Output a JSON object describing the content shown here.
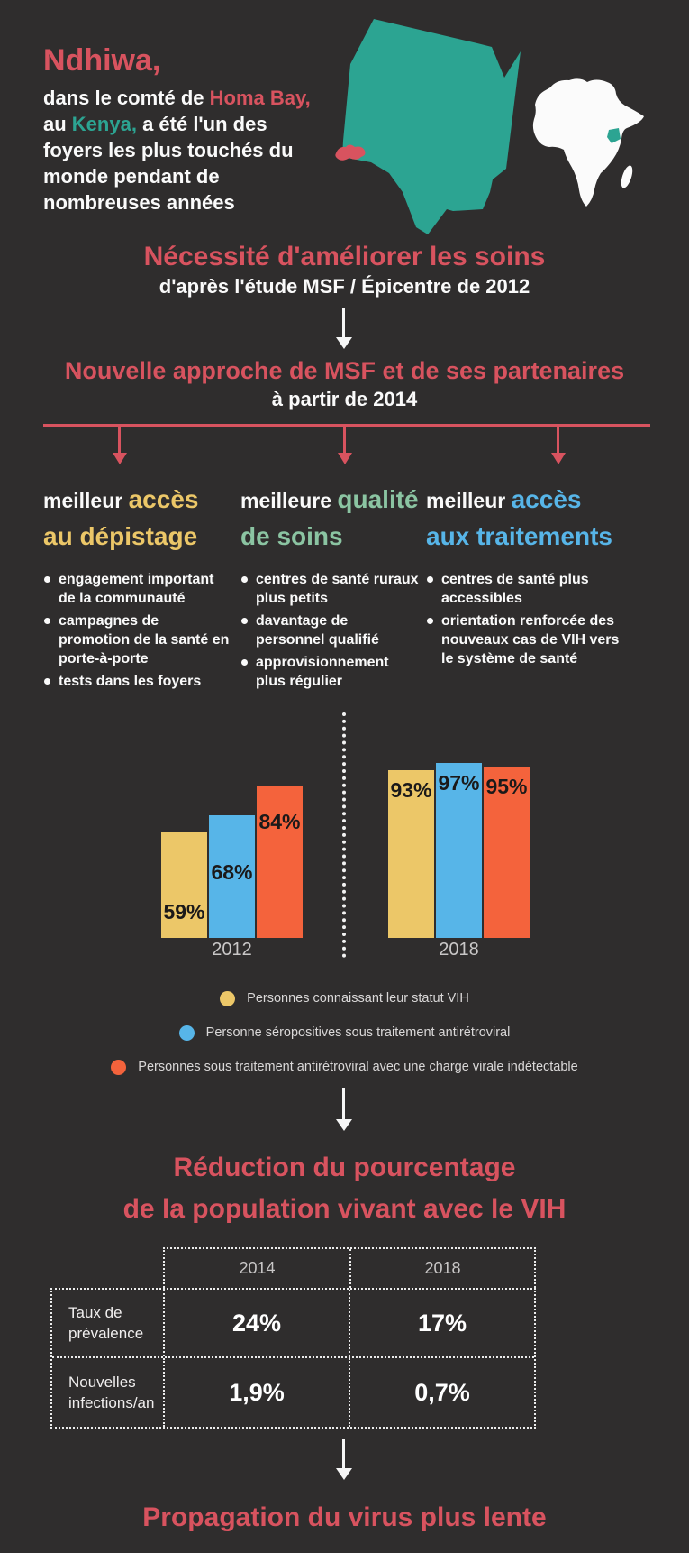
{
  "colors": {
    "background": "#2F2D2D",
    "red": "#D8535F",
    "teal": "#2CA492",
    "soft_green": "#8BC4A2",
    "yellow": "#ECC768",
    "blue": "#57B5E8",
    "orange": "#F4633C",
    "white": "#FAFAFA",
    "muted_gray": "#C9C7C7"
  },
  "graphics": {
    "kenya_map": "teal Kenya silhouette with Ndhiwa/Homa Bay region highlighted in red",
    "africa_map": "white Africa silhouette with Kenya highlighted in teal"
  },
  "header": {
    "title": "Ndhiwa,",
    "intro": {
      "line1_part1": "dans le comté de ",
      "line1_part2": "Homa Bay,",
      "line2_part1": "au ",
      "line2_part2": "Kenya,",
      "line2_part3": " a été l'un des",
      "line3": "foyers les plus touchés du",
      "line4": "monde pendant de",
      "line5": "nombreuses années"
    }
  },
  "sections": {
    "need": {
      "title": "Nécessité d'améliorer les soins",
      "subtitle": "d'après l'étude MSF / Épicentre de 2012"
    },
    "approach": {
      "title": "Nouvelle approche de MSF et de ses partenaires",
      "subtitle": "à partir de 2014"
    },
    "reduction": {
      "title_line1": "Réduction du pourcentage",
      "title_line2": "de la population vivant avec le VIH"
    },
    "conclusion": {
      "title": "Propagation du virus plus lente"
    }
  },
  "columns": [
    {
      "title_prefix": "meilleur",
      "title_accent_line1": "accès",
      "title_accent_line2": "au dépistage",
      "accent_color": "#ECC768",
      "bullets": [
        "engagement important de la communauté",
        "campagnes de promotion de la santé en porte-à-porte",
        "tests dans les foyers"
      ]
    },
    {
      "title_prefix": "meilleure",
      "title_accent_line1": "qualité",
      "title_accent_line2": "de soins",
      "accent_color": "#8BC4A2",
      "bullets": [
        "centres de santé ruraux plus petits",
        "davantage de personnel qualifié",
        "approvisionnement plus régulier"
      ]
    },
    {
      "title_prefix": "meilleur",
      "title_accent_line1": "accès",
      "title_accent_line2": "aux traitements",
      "accent_color": "#57B5E8",
      "bullets": [
        "centres de santé plus accessibles",
        "orientation renforcée des nouveaux cas de VIH vers le système de santé"
      ]
    }
  ],
  "chart_data": {
    "type": "bar",
    "categories": [
      "2012",
      "2018"
    ],
    "series": [
      {
        "name": "Personnes connaissant leur statut VIH",
        "color": "#ECC768",
        "values": [
          59,
          93
        ]
      },
      {
        "name": "Personne séropositives sous traitement antirétroviral",
        "color": "#57B5E8",
        "values": [
          68,
          97
        ]
      },
      {
        "name": "Personnes sous traitement antirétroviral avec une charge virale indétectable",
        "color": "#F4633C",
        "values": [
          84,
          95
        ]
      }
    ],
    "unit": "%",
    "ylim": [
      0,
      100
    ],
    "grid": false,
    "legend_position": "bottom"
  },
  "table": {
    "col_headers": [
      "2014",
      "2018"
    ],
    "rows": [
      {
        "label": "Taux de prévalence",
        "values": [
          "24%",
          "17%"
        ]
      },
      {
        "label": "Nouvelles infections/an",
        "values": [
          "1,9%",
          "0,7%"
        ]
      }
    ]
  }
}
